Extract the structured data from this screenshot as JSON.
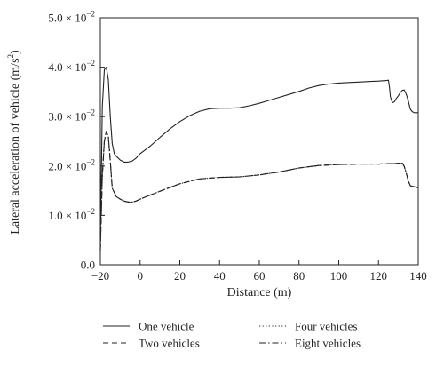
{
  "chart_data": {
    "type": "line",
    "title": "",
    "xlabel": "Distance (m)",
    "ylabel": "Lateral acceleration of vehicle (m/s²)",
    "ylabel_parts": [
      "Lateral acceleration of vehicle (m/s",
      "2",
      ")"
    ],
    "xlim": [
      -20,
      140
    ],
    "ylim": [
      0,
      0.05
    ],
    "x_ticks": [
      -20,
      0,
      20,
      40,
      60,
      80,
      100,
      120,
      140
    ],
    "x_tick_labels": [
      "−20",
      "0",
      "20",
      "40",
      "60",
      "80",
      "100",
      "120",
      "140"
    ],
    "y_ticks": [
      {
        "value": 0,
        "label": "0.0",
        "exponent": ""
      },
      {
        "value": 0.01,
        "label": "1.0 × 10",
        "exponent": "−2"
      },
      {
        "value": 0.02,
        "label": "2.0 × 10",
        "exponent": "−2"
      },
      {
        "value": 0.03,
        "label": "3.0 × 10",
        "exponent": "−2"
      },
      {
        "value": 0.04,
        "label": "4.0 × 10",
        "exponent": "−2"
      },
      {
        "value": 0.05,
        "label": "5.0 × 10",
        "exponent": "−2"
      }
    ],
    "grid": false,
    "legend_placement": "bottom",
    "series": [
      {
        "name": "One vehicle",
        "dash": "solid",
        "x": [
          -20,
          -19,
          -18,
          -17,
          -16,
          -15,
          -14,
          -13,
          -12,
          -10,
          -8,
          -6,
          -4,
          -2,
          0,
          5,
          10,
          15,
          20,
          25,
          30,
          35,
          40,
          45,
          50,
          55,
          60,
          65,
          70,
          75,
          80,
          85,
          90,
          95,
          100,
          105,
          110,
          115,
          120,
          124,
          125,
          125.5,
          126,
          127,
          128,
          129,
          130,
          131,
          132,
          133,
          134,
          135,
          136,
          137,
          138,
          140
        ],
        "y": [
          0.004,
          0.032,
          0.0395,
          0.04,
          0.0375,
          0.03,
          0.0245,
          0.0225,
          0.022,
          0.0212,
          0.0208,
          0.0208,
          0.021,
          0.0216,
          0.0225,
          0.024,
          0.0258,
          0.0275,
          0.029,
          0.0302,
          0.0311,
          0.0316,
          0.0317,
          0.0317,
          0.0318,
          0.0322,
          0.0327,
          0.0333,
          0.0339,
          0.0345,
          0.0351,
          0.0358,
          0.0363,
          0.0366,
          0.0368,
          0.0369,
          0.037,
          0.0371,
          0.0372,
          0.0373,
          0.0374,
          0.036,
          0.034,
          0.0328,
          0.033,
          0.0337,
          0.0342,
          0.0349,
          0.0353,
          0.0354,
          0.0345,
          0.0332,
          0.0315,
          0.031,
          0.0308,
          0.0308
        ]
      },
      {
        "name": "Two vehicles",
        "dash": "dashed",
        "x": [
          -20,
          -19,
          -18,
          -17,
          -16,
          -15,
          -14,
          -12,
          -10,
          -8,
          -6,
          -4,
          -2,
          0,
          10,
          20,
          30,
          40,
          50,
          60,
          70,
          80,
          90,
          100,
          110,
          120,
          125,
          128,
          130,
          132,
          133,
          134,
          135,
          136,
          140
        ],
        "y": [
          0.003,
          0.018,
          0.025,
          0.027,
          0.026,
          0.021,
          0.0155,
          0.0138,
          0.0133,
          0.0129,
          0.0127,
          0.0127,
          0.0129,
          0.0133,
          0.0149,
          0.0164,
          0.0174,
          0.0177,
          0.0178,
          0.0182,
          0.0188,
          0.0196,
          0.0201,
          0.0203,
          0.0204,
          0.0204,
          0.0205,
          0.0205,
          0.0206,
          0.0206,
          0.0199,
          0.0185,
          0.017,
          0.016,
          0.0156
        ]
      },
      {
        "name": "Four vehicles",
        "dash": "dotted",
        "x": [
          -20,
          -19,
          -18,
          -17,
          -16,
          -15,
          -14,
          -12,
          -10,
          -8,
          -6,
          -4,
          -2,
          0,
          10,
          20,
          30,
          40,
          50,
          60,
          70,
          80,
          90,
          100,
          110,
          120,
          125,
          128,
          130,
          132,
          133,
          134,
          135,
          136,
          140
        ],
        "y": [
          0.003,
          0.018,
          0.025,
          0.027,
          0.026,
          0.021,
          0.0155,
          0.0138,
          0.0133,
          0.0129,
          0.0127,
          0.0127,
          0.0129,
          0.0133,
          0.0149,
          0.0164,
          0.0174,
          0.0177,
          0.0178,
          0.0182,
          0.0188,
          0.0196,
          0.0201,
          0.0203,
          0.0204,
          0.0204,
          0.0205,
          0.0205,
          0.0206,
          0.0206,
          0.0199,
          0.0185,
          0.017,
          0.016,
          0.0156
        ]
      },
      {
        "name": "Eight vehicles",
        "dash": "dashdot",
        "x": [
          -20,
          -19,
          -18,
          -17,
          -16,
          -15,
          -14,
          -12,
          -10,
          -8,
          -6,
          -4,
          -2,
          0,
          10,
          20,
          30,
          40,
          50,
          60,
          70,
          80,
          90,
          100,
          110,
          120,
          125,
          128,
          130,
          132,
          133,
          134,
          135,
          136,
          140
        ],
        "y": [
          0.003,
          0.018,
          0.025,
          0.027,
          0.026,
          0.021,
          0.0155,
          0.0138,
          0.0133,
          0.0129,
          0.0127,
          0.0127,
          0.0129,
          0.0133,
          0.0149,
          0.0164,
          0.0174,
          0.0177,
          0.0178,
          0.0182,
          0.0188,
          0.0196,
          0.0201,
          0.0203,
          0.0204,
          0.0204,
          0.0205,
          0.0205,
          0.0206,
          0.0206,
          0.0199,
          0.0185,
          0.017,
          0.016,
          0.0156
        ]
      }
    ],
    "colors": {
      "line": "#222222",
      "axis": "#222222"
    }
  }
}
